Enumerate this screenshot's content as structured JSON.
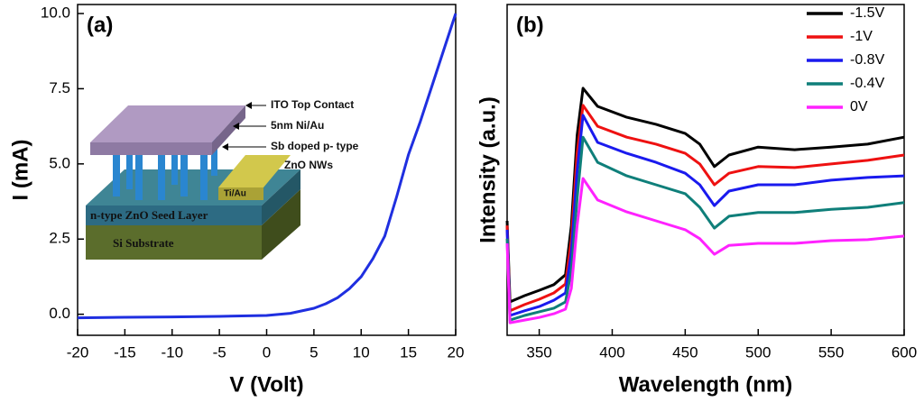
{
  "chart_data": [
    {
      "type": "line",
      "panel_label": "(a)",
      "xlabel": "V (Volt)",
      "ylabel": "I (mA)",
      "xlim": [
        -20,
        20
      ],
      "xticks": [
        -20,
        -15,
        -10,
        -5,
        0,
        5,
        10,
        15,
        20
      ],
      "ylim": [
        -0.7,
        10.3
      ],
      "yticks": [
        {
          "value": 0,
          "label": "0.0"
        },
        {
          "value": 2.5,
          "label": "2.5"
        },
        {
          "value": 5,
          "label": "5.0"
        },
        {
          "value": 7.5,
          "label": "7.5"
        },
        {
          "value": 10,
          "label": "10.0"
        }
      ],
      "x": [
        -20,
        -15,
        -10,
        -5,
        0,
        2.5,
        5,
        6.25,
        7.5,
        8.75,
        10,
        11.25,
        12.5,
        13.75,
        15,
        16.25,
        17.5,
        18.75,
        20
      ],
      "series": [
        {
          "color": "#1f2fe0",
          "values": [
            -0.12,
            -0.1,
            -0.09,
            -0.07,
            -0.04,
            0.03,
            0.2,
            0.35,
            0.55,
            0.85,
            1.25,
            1.85,
            2.6,
            3.9,
            5.3,
            6.4,
            7.6,
            8.8,
            10.0
          ]
        }
      ],
      "inset_labels": [
        "ITO Top Contact",
        "5nm Ni/Au",
        "Sb doped p- type",
        "ZnO NWs",
        "Ti/Au",
        "n-type ZnO Seed Layer",
        "Si Substrate"
      ]
    },
    {
      "type": "line",
      "panel_label": "(b)",
      "xlabel": "Wavelength (nm)",
      "ylabel": "Intensity (a.u.)",
      "xlim": [
        328,
        600
      ],
      "xticks": [
        350,
        400,
        450,
        500,
        550,
        600
      ],
      "ylim": [
        0,
        10
      ],
      "legend": "upper right",
      "x": [
        328,
        330,
        340,
        350,
        360,
        368,
        372,
        376,
        380,
        390,
        410,
        430,
        450,
        460,
        470,
        480,
        500,
        525,
        550,
        575,
        600
      ],
      "series": [
        {
          "name": "-1.5V",
          "color": "#000000",
          "values": [
            3.46,
            1.01,
            1.2,
            1.36,
            1.53,
            1.83,
            3.32,
            6.05,
            7.47,
            6.92,
            6.59,
            6.38,
            6.1,
            5.78,
            5.1,
            5.45,
            5.69,
            5.61,
            5.69,
            5.78,
            5.99
          ]
        },
        {
          "name": "-1V",
          "color": "#ee1111",
          "values": [
            3.32,
            0.74,
            0.93,
            1.09,
            1.28,
            1.55,
            2.92,
            5.5,
            6.95,
            6.32,
            5.99,
            5.78,
            5.5,
            5.18,
            4.55,
            4.9,
            5.1,
            5.07,
            5.18,
            5.29,
            5.45
          ]
        },
        {
          "name": "-0.8V",
          "color": "#1a1aee",
          "values": [
            3.19,
            0.6,
            0.74,
            0.87,
            1.06,
            1.28,
            2.51,
            4.96,
            6.65,
            5.83,
            5.5,
            5.23,
            4.9,
            4.55,
            3.92,
            4.36,
            4.55,
            4.55,
            4.69,
            4.77,
            4.82
          ]
        },
        {
          "name": "-0.4V",
          "color": "#0f7f7a",
          "values": [
            2.92,
            0.46,
            0.6,
            0.71,
            0.82,
            1.01,
            1.96,
            4.14,
            5.99,
            5.23,
            4.82,
            4.55,
            4.28,
            3.87,
            3.24,
            3.6,
            3.71,
            3.71,
            3.81,
            3.87,
            4.01
          ]
        },
        {
          "name": "0V",
          "color": "#ff22ff",
          "values": [
            2.78,
            0.38,
            0.46,
            0.54,
            0.65,
            0.79,
            1.42,
            3.32,
            4.74,
            4.09,
            3.73,
            3.46,
            3.19,
            2.92,
            2.45,
            2.72,
            2.78,
            2.78,
            2.86,
            2.89,
            3.0
          ]
        }
      ]
    }
  ]
}
